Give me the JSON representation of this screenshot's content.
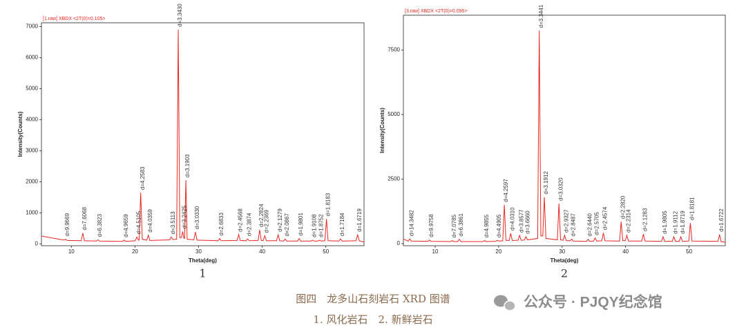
{
  "chart_data": [
    {
      "type": "line",
      "title": "[1.raw] XBDX <2T(0)=0.105>",
      "xlabel": "Theta(deg)",
      "ylabel": "Intensity(Counts)",
      "panel_label": "1",
      "xlim": [
        5.3,
        56
      ],
      "xticks": [
        10,
        20,
        30,
        40,
        50
      ],
      "ylim": [
        -60,
        7120
      ],
      "yticks": [
        0,
        1000,
        2000,
        3000,
        4000,
        5000,
        6000,
        7000
      ],
      "color": "#e8251f",
      "x": [
        5.3,
        8.85,
        9.1,
        9.35,
        11.55,
        11.8,
        12.05,
        13.95,
        14.2,
        14.45,
        18.05,
        18.3,
        18.55,
        20.05,
        20.3,
        20.55,
        20.65,
        20.9,
        21.15,
        21.85,
        22.1,
        22.35,
        25.45,
        25.7,
        25.95,
        26.55,
        26.8,
        27.05,
        27.3,
        27.5,
        27.7,
        27.8,
        28.0,
        28.2,
        29.25,
        29.5,
        29.75,
        33.05,
        33.3,
        33.55,
        36.05,
        36.3,
        36.55,
        37.45,
        37.7,
        37.95,
        39.35,
        39.6,
        39.85,
        40.15,
        40.4,
        40.65,
        42.25,
        42.5,
        42.75,
        43.35,
        43.6,
        43.85,
        45.55,
        45.8,
        46.05,
        47.65,
        47.9,
        48.15,
        48.75,
        49.0,
        49.25,
        49.85,
        50.1,
        50.35,
        52.05,
        52.3,
        52.55,
        54.75,
        55.0,
        55.25,
        56.0
      ],
      "values": [
        250,
        120,
        150,
        110,
        100,
        350,
        100,
        90,
        130,
        90,
        80,
        120,
        80,
        100,
        220,
        120,
        120,
        1650,
        150,
        120,
        280,
        110,
        130,
        220,
        140,
        150,
        6900,
        200,
        200,
        400,
        180,
        180,
        2050,
        150,
        130,
        380,
        120,
        100,
        170,
        100,
        110,
        300,
        110,
        100,
        160,
        100,
        110,
        450,
        110,
        110,
        260,
        100,
        100,
        300,
        100,
        90,
        150,
        90,
        90,
        170,
        90,
        90,
        120,
        90,
        90,
        120,
        90,
        100,
        800,
        100,
        90,
        160,
        90,
        100,
        300,
        100,
        60
      ],
      "annotations": [
        {
          "x": 9.1,
          "y": 150,
          "label": "d=9.9669"
        },
        {
          "x": 11.8,
          "y": 350,
          "label": "d=7.6068"
        },
        {
          "x": 14.2,
          "y": 130,
          "label": "d=6.3823"
        },
        {
          "x": 18.3,
          "y": 120,
          "label": "d=4.9659"
        },
        {
          "x": 20.3,
          "y": 220,
          "label": "d=4.5105"
        },
        {
          "x": 20.9,
          "y": 1650,
          "label": "d=4.2583"
        },
        {
          "x": 22.1,
          "y": 280,
          "label": "d=4.0359"
        },
        {
          "x": 25.7,
          "y": 220,
          "label": "d=3.5113"
        },
        {
          "x": 26.8,
          "y": 6900,
          "label": "d=3.3430"
        },
        {
          "x": 27.5,
          "y": 400,
          "label": "d=3.2425"
        },
        {
          "x": 28.0,
          "y": 2050,
          "label": "d=3.1903"
        },
        {
          "x": 29.5,
          "y": 380,
          "label": "d=3.0330"
        },
        {
          "x": 33.3,
          "y": 170,
          "label": "d=2.6833"
        },
        {
          "x": 36.3,
          "y": 300,
          "label": "d=2.4568"
        },
        {
          "x": 37.7,
          "y": 160,
          "label": "d=2.3874"
        },
        {
          "x": 39.6,
          "y": 450,
          "label": "d=2.2824"
        },
        {
          "x": 40.4,
          "y": 260,
          "label": "d=2.2369"
        },
        {
          "x": 42.5,
          "y": 300,
          "label": "d=2.1279"
        },
        {
          "x": 43.6,
          "y": 150,
          "label": "d=2.0867"
        },
        {
          "x": 45.8,
          "y": 170,
          "label": "d=1.9801"
        },
        {
          "x": 47.9,
          "y": 120,
          "label": "d=1.9108"
        },
        {
          "x": 49.0,
          "y": 120,
          "label": "d=1.8752"
        },
        {
          "x": 50.1,
          "y": 800,
          "label": "d=1.8183"
        },
        {
          "x": 52.3,
          "y": 160,
          "label": "d=1.7184"
        },
        {
          "x": 55.0,
          "y": 300,
          "label": "d=1.6719"
        }
      ]
    },
    {
      "type": "line",
      "title": "[3.raw] XBDX <2T(0)=0.095>",
      "xlabel": "Theta(deg)",
      "ylabel": "Intensity(Counts)",
      "panel_label": "2",
      "xlim": [
        5,
        55.7
      ],
      "xticks": [
        10,
        20,
        30,
        40,
        50
      ],
      "ylim": [
        -80,
        8850
      ],
      "yticks": [
        0,
        2500,
        5000,
        7500
      ],
      "color": "#e8251f",
      "x": [
        5.0,
        5.75,
        6.0,
        6.25,
        8.85,
        9.1,
        9.35,
        12.45,
        12.7,
        12.95,
        13.55,
        13.8,
        14.05,
        17.55,
        17.8,
        18.05,
        19.55,
        19.8,
        20.05,
        20.65,
        20.9,
        21.15,
        21.65,
        21.9,
        22.15,
        23.05,
        23.3,
        23.55,
        24.05,
        24.3,
        24.55,
        26.15,
        26.4,
        26.65,
        26.95,
        27.2,
        27.45,
        29.25,
        29.5,
        29.75,
        30.15,
        30.4,
        30.65,
        31.25,
        31.5,
        31.75,
        33.85,
        34.1,
        34.35,
        34.95,
        35.2,
        35.45,
        36.25,
        36.5,
        36.75,
        39.05,
        39.3,
        39.55,
        39.95,
        40.2,
        40.45,
        42.55,
        42.8,
        43.05,
        45.65,
        45.9,
        46.15,
        47.35,
        47.6,
        47.85,
        48.45,
        48.7,
        48.95,
        49.95,
        50.2,
        50.45,
        54.55,
        54.8,
        55.05,
        55.7
      ],
      "values": [
        180,
        100,
        180,
        100,
        90,
        140,
        90,
        80,
        120,
        80,
        80,
        170,
        80,
        80,
        120,
        80,
        90,
        130,
        100,
        110,
        1500,
        130,
        120,
        400,
        120,
        130,
        320,
        130,
        140,
        270,
        150,
        200,
        8250,
        300,
        300,
        1800,
        200,
        150,
        1550,
        150,
        130,
        320,
        120,
        110,
        170,
        100,
        90,
        170,
        90,
        100,
        220,
        100,
        110,
        420,
        110,
        100,
        850,
        120,
        110,
        320,
        100,
        100,
        370,
        100,
        90,
        270,
        90,
        90,
        270,
        90,
        90,
        270,
        90,
        100,
        800,
        100,
        90,
        350,
        80,
        60
      ],
      "annotations": [
        {
          "x": 6.0,
          "y": 180,
          "label": "d=14.3482"
        },
        {
          "x": 9.1,
          "y": 140,
          "label": "d=9.9758"
        },
        {
          "x": 12.7,
          "y": 120,
          "label": "d=7.0785"
        },
        {
          "x": 13.8,
          "y": 170,
          "label": "d=6.3861"
        },
        {
          "x": 17.8,
          "y": 120,
          "label": "d=4.9855"
        },
        {
          "x": 19.8,
          "y": 130,
          "label": "d=4.4905"
        },
        {
          "x": 20.9,
          "y": 1500,
          "label": "d=4.2597"
        },
        {
          "x": 21.9,
          "y": 400,
          "label": "d=4.0310"
        },
        {
          "x": 23.3,
          "y": 320,
          "label": "d=3.8577"
        },
        {
          "x": 24.3,
          "y": 270,
          "label": "d=3.6660"
        },
        {
          "x": 26.4,
          "y": 8250,
          "label": "d=3.3441"
        },
        {
          "x": 27.2,
          "y": 1800,
          "label": "d=3.1912"
        },
        {
          "x": 29.5,
          "y": 1550,
          "label": "d=3.0320"
        },
        {
          "x": 30.4,
          "y": 320,
          "label": "d=2.9327"
        },
        {
          "x": 31.5,
          "y": 170,
          "label": "d=2.8487"
        },
        {
          "x": 34.1,
          "y": 170,
          "label": "d=2.6440"
        },
        {
          "x": 35.2,
          "y": 220,
          "label": "d=2.5705"
        },
        {
          "x": 36.5,
          "y": 420,
          "label": "d=2.4574"
        },
        {
          "x": 39.3,
          "y": 850,
          "label": "d=2.2820"
        },
        {
          "x": 40.2,
          "y": 320,
          "label": "d=2.2314"
        },
        {
          "x": 42.8,
          "y": 370,
          "label": "d=2.1283"
        },
        {
          "x": 45.9,
          "y": 270,
          "label": "d=1.9805"
        },
        {
          "x": 47.6,
          "y": 270,
          "label": "d=1.9112"
        },
        {
          "x": 48.7,
          "y": 270,
          "label": "d=1.8719"
        },
        {
          "x": 50.2,
          "y": 800,
          "label": "d=1.8181"
        },
        {
          "x": 54.8,
          "y": 350,
          "label": "d=1.6722"
        }
      ]
    }
  ],
  "caption": {
    "title": "图四　龙多山石刻岩石 XRD 图谱",
    "subtitle": "1. 风化岩石　2. 新鲜岩石"
  },
  "watermark": "公众号 · PJQY纪念馆"
}
